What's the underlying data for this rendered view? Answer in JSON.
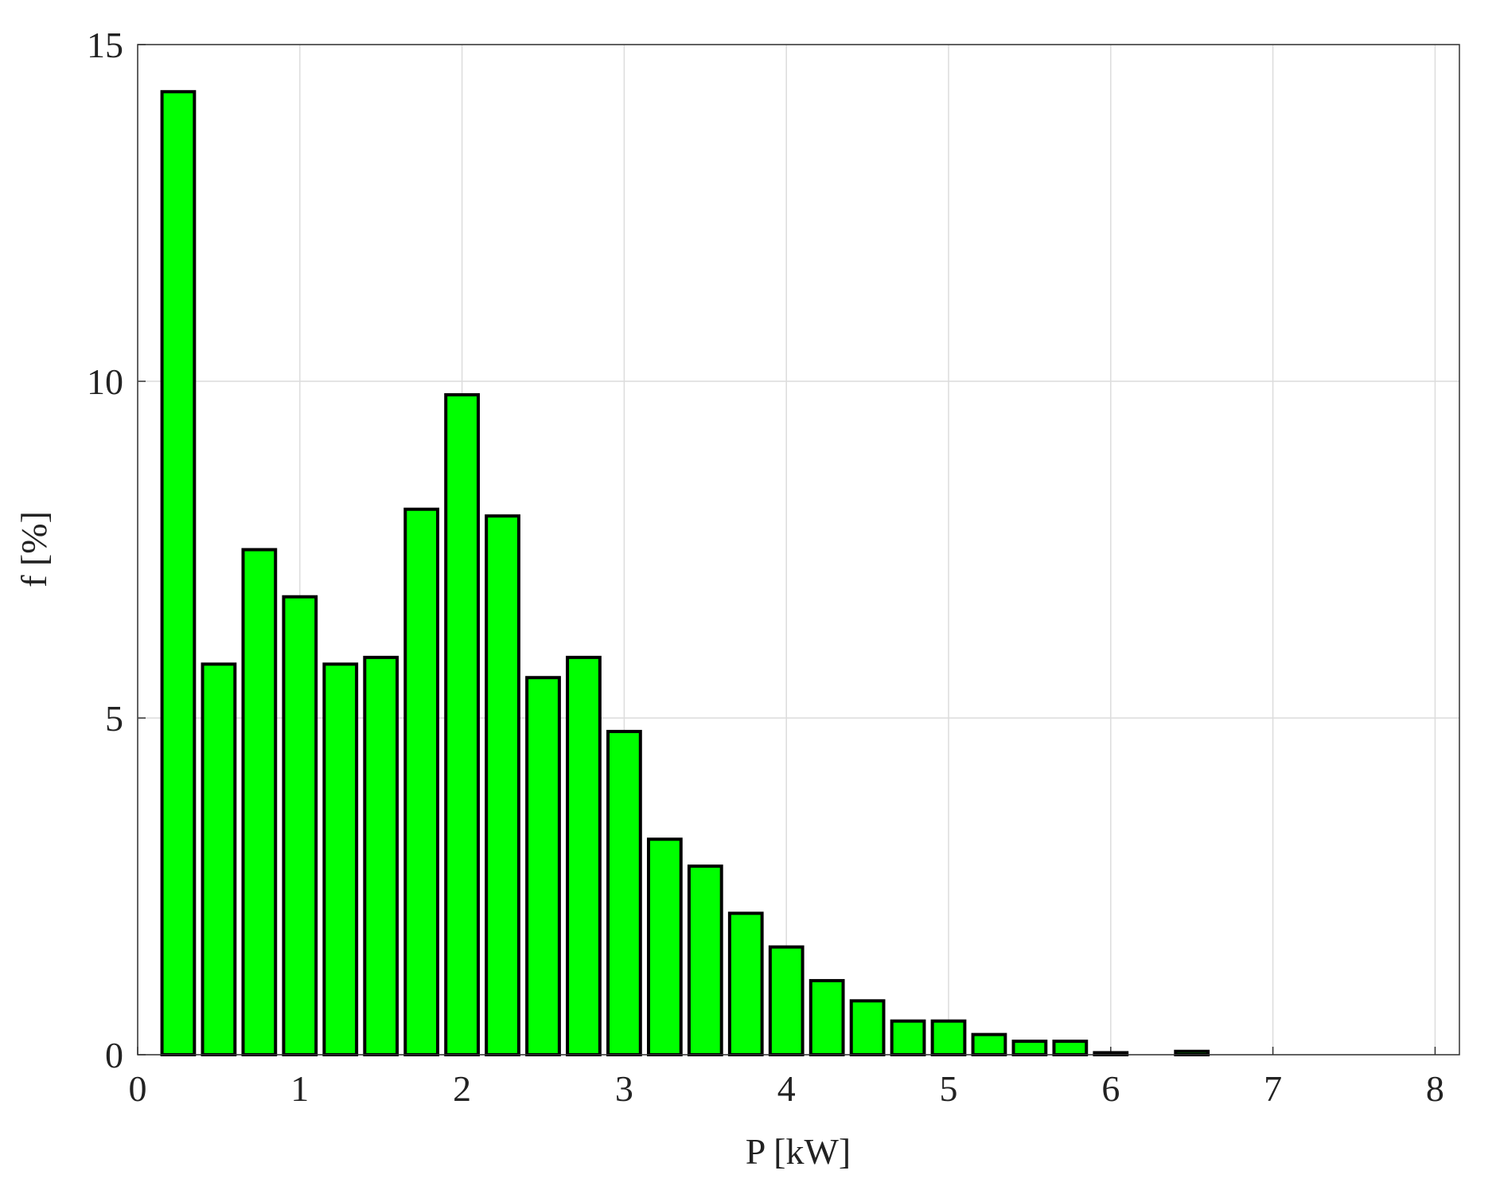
{
  "chart_data": {
    "type": "bar",
    "x": [
      0.25,
      0.5,
      0.75,
      1,
      1.25,
      1.5,
      1.75,
      2,
      2.25,
      2.5,
      2.75,
      3,
      3.25,
      3.5,
      3.75,
      4,
      4.25,
      4.5,
      4.75,
      5,
      5.25,
      5.5,
      5.75,
      6,
      6.25,
      6.5,
      6.75,
      7,
      7.25,
      7.5,
      7.75,
      8
    ],
    "values": [
      14.3,
      5.8,
      7.5,
      6.8,
      5.8,
      5.9,
      8.1,
      9.8,
      8.0,
      5.6,
      5.9,
      4.8,
      3.2,
      2.8,
      2.1,
      1.6,
      1.1,
      0.8,
      0.5,
      0.5,
      0.3,
      0.2,
      0.2,
      0.03,
      0,
      0.05,
      0,
      0,
      0,
      0,
      0,
      0
    ],
    "color": "#00ff00",
    "x_label": "P [kW]",
    "y_label": "f [%]",
    "xlim": [
      0,
      8.15
    ],
    "xticks": [
      0,
      1,
      2,
      3,
      4,
      5,
      6,
      7,
      8
    ],
    "ylim": [
      0,
      15
    ],
    "yticks": [
      0,
      5,
      10,
      15
    ],
    "grid": true
  }
}
